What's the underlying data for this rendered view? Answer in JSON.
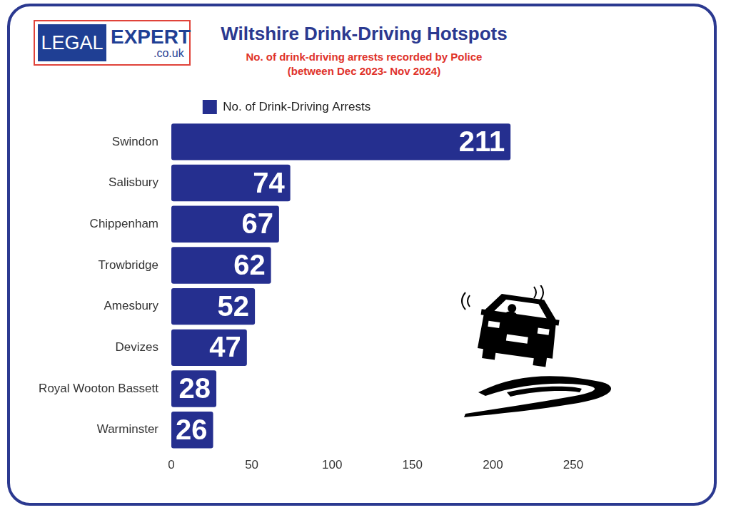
{
  "chart_data": {
    "type": "bar",
    "orientation": "horizontal",
    "logo": [
      "LEGAL",
      "EXPERT",
      ".co.uk"
    ],
    "title": "Wiltshire Drink-Driving Hotspots",
    "subtitle": "No. of drink-driving arrests recorded by Police\n(between Dec 2023- Nov 2024)",
    "categories": [
      "Swindon",
      "Salisbury",
      "Chippenham",
      "Trowbridge",
      "Amesbury",
      "Devizes",
      "Royal Wooton Bassett",
      "Warminster"
    ],
    "series": [
      {
        "name": "No. of Drink-Driving Arrests",
        "color": "#252f8f",
        "values": [
          211,
          74,
          67,
          62,
          52,
          47,
          28,
          26
        ]
      }
    ],
    "xlim": [
      0,
      250
    ],
    "xticks": [
      0,
      50,
      100,
      150,
      200,
      250
    ],
    "grid": false,
    "legend": "top",
    "data_labels": true
  }
}
